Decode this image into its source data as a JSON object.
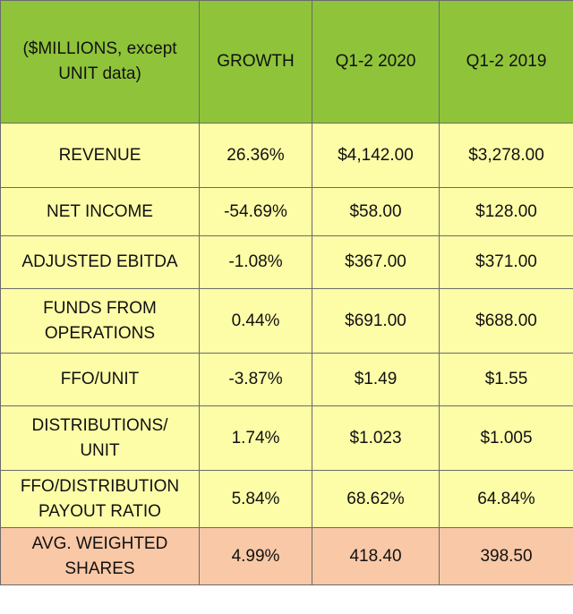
{
  "header": {
    "label_line1": "($MILLIONS, except",
    "label_line2": "UNIT data)",
    "growth": "GROWTH",
    "period_current": "Q1-2 2020",
    "period_prior": "Q1-2 2019"
  },
  "rows": [
    {
      "label_line1": "REVENUE",
      "label_line2": "",
      "growth": "26.36%",
      "current": "$4,142.00",
      "prior": "$3,278.00"
    },
    {
      "label_line1": "NET INCOME",
      "label_line2": "",
      "growth": "-54.69%",
      "current": "$58.00",
      "prior": "$128.00"
    },
    {
      "label_line1": "ADJUSTED EBITDA",
      "label_line2": "",
      "growth": "-1.08%",
      "current": "$367.00",
      "prior": "$371.00"
    },
    {
      "label_line1": "FUNDS FROM",
      "label_line2": "OPERATIONS",
      "growth": "0.44%",
      "current": "$691.00",
      "prior": "$688.00"
    },
    {
      "label_line1": "FFO/UNIT",
      "label_line2": "",
      "growth": "-3.87%",
      "current": "$1.49",
      "prior": "$1.55"
    },
    {
      "label_line1": "DISTRIBUTIONS/",
      "label_line2": "UNIT",
      "growth": "1.74%",
      "current": "$1.023",
      "prior": "$1.005"
    },
    {
      "label_line1": "FFO/DISTRIBUTION",
      "label_line2": "PAYOUT RATIO",
      "growth": "5.84%",
      "current": "68.62%",
      "prior": "64.84%"
    },
    {
      "label_line1": "AVG. WEIGHTED",
      "label_line2": "SHARES",
      "growth": "4.99%",
      "current": "418.40",
      "prior": "398.50"
    }
  ],
  "colors": {
    "header_bg": "#8fc43a",
    "row_bg": "#fdfda8",
    "last_row_bg": "#f9c8a6",
    "border": "#6b6b6b"
  }
}
